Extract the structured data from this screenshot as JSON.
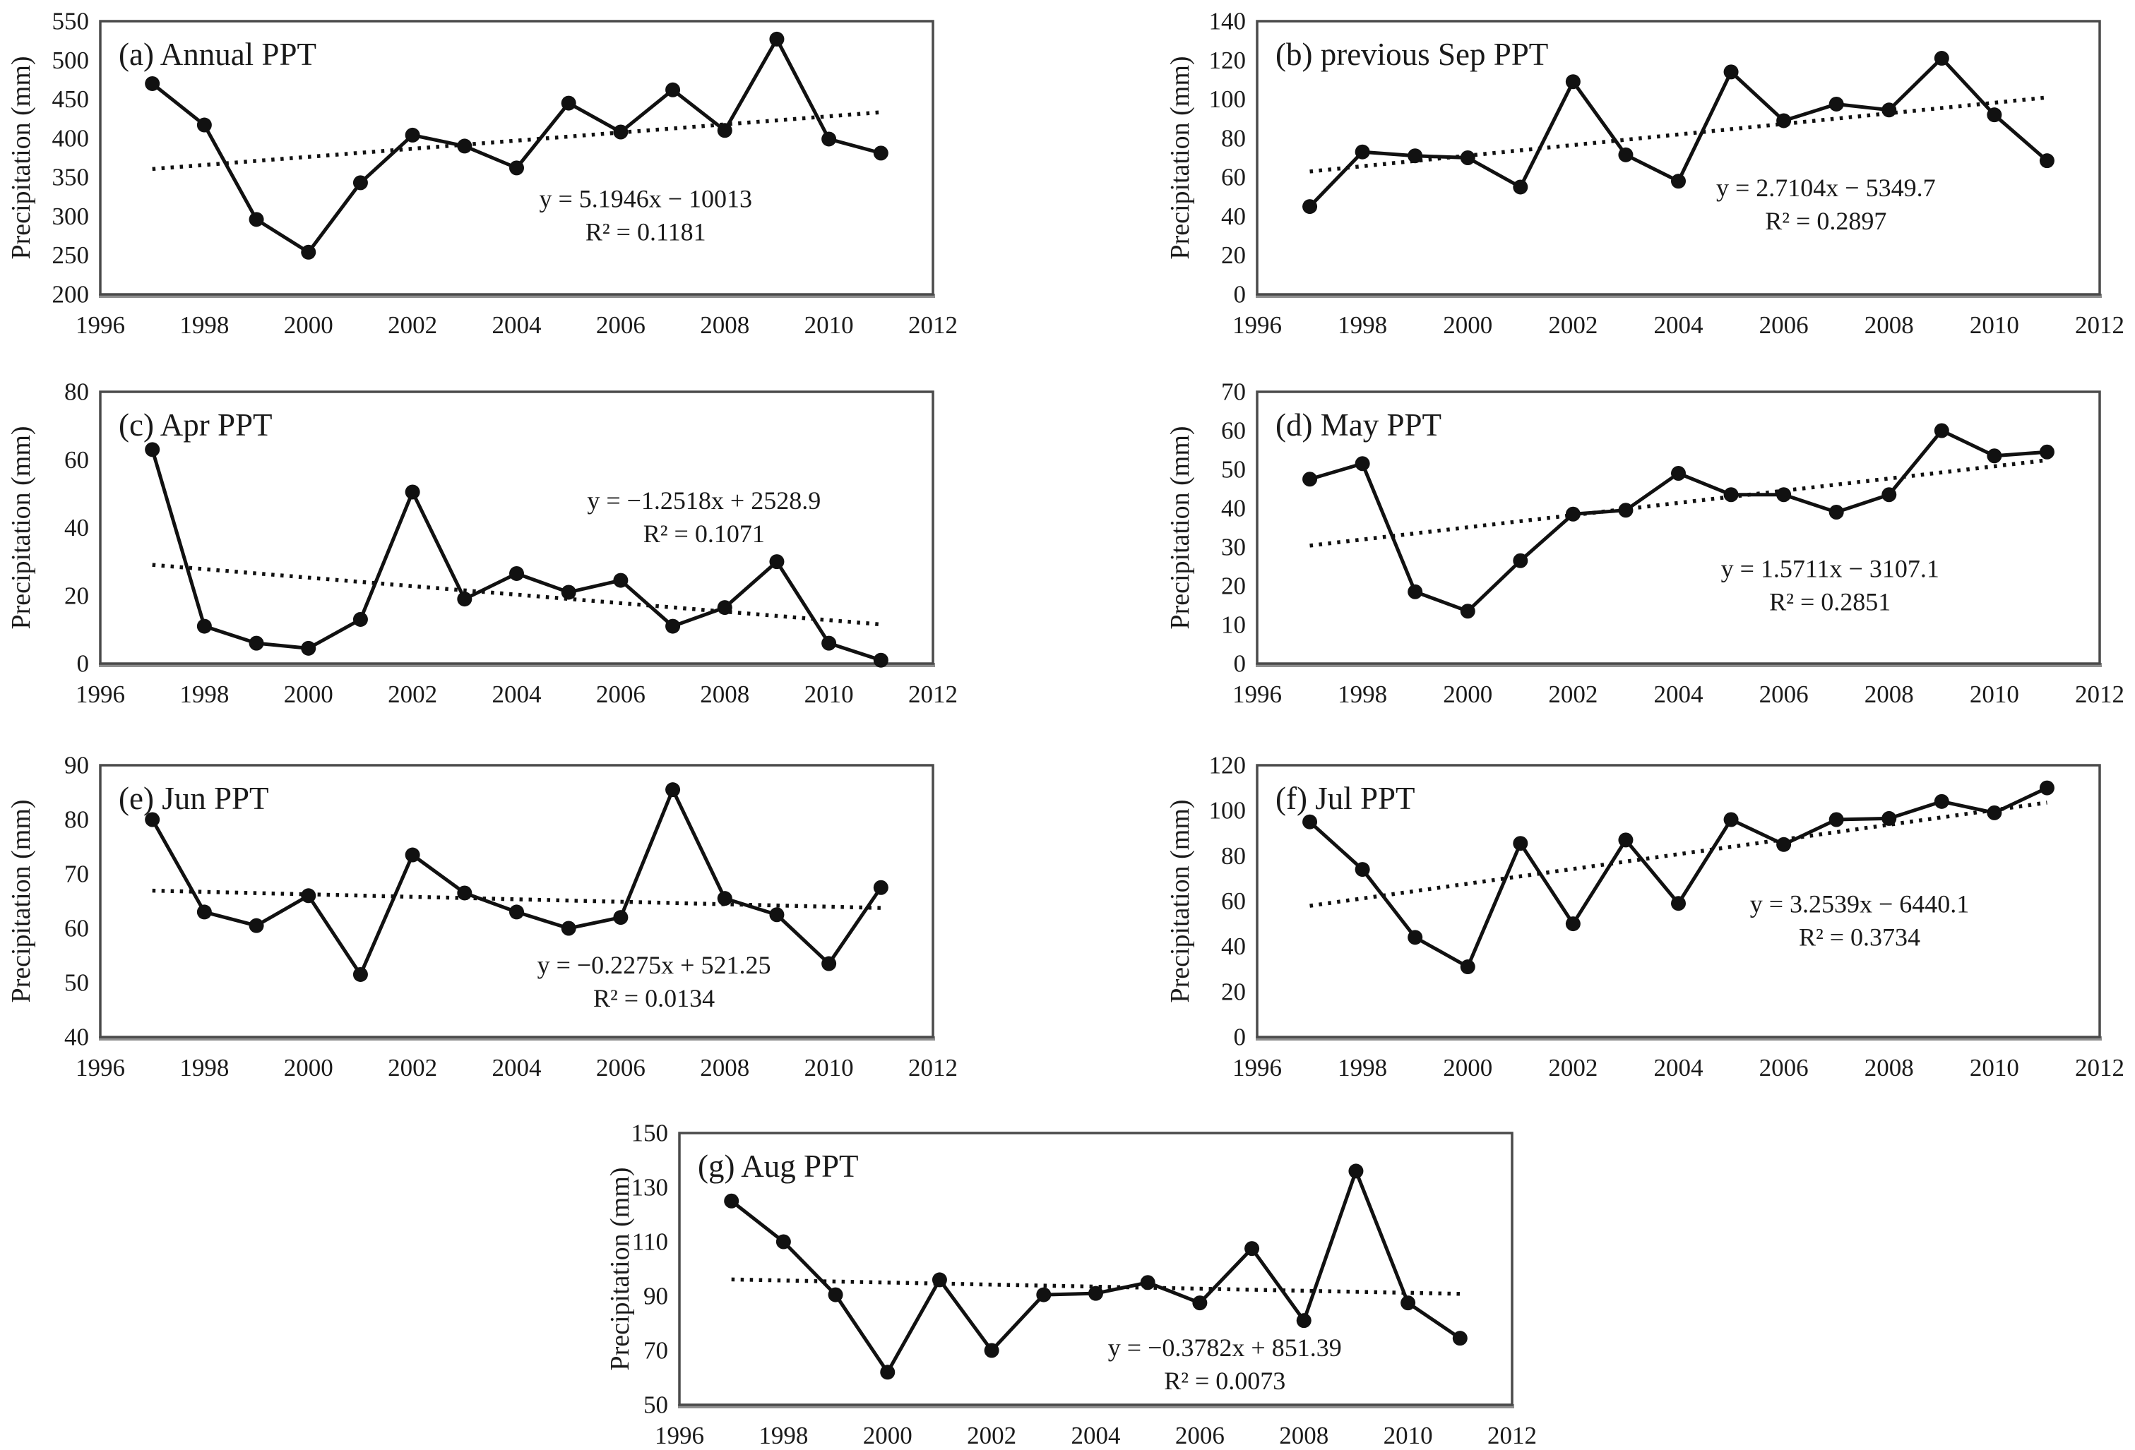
{
  "figure": {
    "ylabel": "Precipitation (mm)",
    "x_tick_labels": [
      "1996",
      "1998",
      "2000",
      "2002",
      "2004",
      "2006",
      "2008",
      "2010",
      "2012"
    ],
    "years": [
      1997,
      1998,
      1999,
      2000,
      2001,
      2002,
      2003,
      2004,
      2005,
      2006,
      2007,
      2008,
      2009,
      2010,
      2011
    ],
    "colors": {
      "background": "#ffffff",
      "series": "#111111",
      "marker": "#111111",
      "trend": "#111111",
      "axis_border": "#4a4a4a",
      "axis_baseline": "#8f8f8f",
      "text": "#1a1a1a"
    }
  },
  "chart_data": [
    {
      "id": "a",
      "type": "line",
      "title": "(a) Annual PPT",
      "ylabel": "Precipitation (mm)",
      "xlabel": "",
      "xlim": [
        1996,
        2012
      ],
      "xtick_step": 2,
      "ylim": [
        200,
        550
      ],
      "ytick_step": 50,
      "grid": false,
      "x": [
        1997,
        1998,
        1999,
        2000,
        2001,
        2002,
        2003,
        2004,
        2005,
        2006,
        2007,
        2008,
        2009,
        2010,
        2011
      ],
      "values": [
        470,
        417,
        296,
        254,
        343,
        404,
        390,
        362,
        445,
        408,
        462,
        410,
        527,
        399,
        381
      ],
      "trend": {
        "slope": 5.1946,
        "intercept": -10013,
        "equation": "y = 5.1946x − 10013",
        "r2": "R² = 0.1181"
      },
      "equation_pos": {
        "fx": 0.655,
        "fy": 0.65
      }
    },
    {
      "id": "b",
      "type": "line",
      "title": "(b) previous Sep PPT",
      "ylabel": "Precipitation (mm)",
      "xlabel": "",
      "xlim": [
        1996,
        2012
      ],
      "xtick_step": 2,
      "ylim": [
        0,
        140
      ],
      "ytick_step": 20,
      "grid": false,
      "x": [
        1997,
        1998,
        1999,
        2000,
        2001,
        2002,
        2003,
        2004,
        2005,
        2006,
        2007,
        2008,
        2009,
        2010,
        2011
      ],
      "values": [
        45,
        73,
        71,
        70,
        55,
        109,
        71.5,
        58,
        114,
        89,
        97.5,
        94.5,
        121,
        92,
        68.5
      ],
      "trend": {
        "slope": 2.7104,
        "intercept": -5349.7,
        "equation": "y = 2.7104x − 5349.7",
        "r2": "R² = 0.2897"
      },
      "equation_pos": {
        "fx": 0.675,
        "fy": 0.61
      }
    },
    {
      "id": "c",
      "type": "line",
      "title": "(c) Apr PPT",
      "ylabel": "Precipitation (mm)",
      "xlabel": "",
      "xlim": [
        1996,
        2012
      ],
      "xtick_step": 2,
      "ylim": [
        0,
        80
      ],
      "ytick_step": 20,
      "grid": false,
      "x": [
        1997,
        1998,
        1999,
        2000,
        2001,
        2002,
        2003,
        2004,
        2005,
        2006,
        2007,
        2008,
        2009,
        2010,
        2011
      ],
      "values": [
        63,
        11,
        6,
        4.5,
        13,
        50.5,
        19,
        26.5,
        21,
        24.5,
        11,
        16.5,
        30,
        6,
        1
      ],
      "trend": {
        "slope": -1.2518,
        "intercept": 2528.9,
        "equation": "y = −1.2518x + 2528.9",
        "r2": "R² = 0.1071"
      },
      "equation_pos": {
        "fx": 0.725,
        "fy": 0.4
      }
    },
    {
      "id": "d",
      "type": "line",
      "title": "(d) May PPT",
      "ylabel": "Precipitation (mm)",
      "xlabel": "",
      "xlim": [
        1996,
        2012
      ],
      "xtick_step": 2,
      "ylim": [
        0,
        70
      ],
      "ytick_step": 10,
      "grid": false,
      "x": [
        1997,
        1998,
        1999,
        2000,
        2001,
        2002,
        2003,
        2004,
        2005,
        2006,
        2007,
        2008,
        2009,
        2010,
        2011
      ],
      "values": [
        47.5,
        51.5,
        18.5,
        13.5,
        26.5,
        38.5,
        39.5,
        49,
        43.5,
        43.5,
        39,
        43.5,
        60,
        53.5,
        54.5
      ],
      "trend": {
        "slope": 1.5711,
        "intercept": -3107.1,
        "equation": "y = 1.5711x − 3107.1",
        "r2": "R² = 0.2851"
      },
      "equation_pos": {
        "fx": 0.68,
        "fy": 0.65
      }
    },
    {
      "id": "e",
      "type": "line",
      "title": "(e) Jun PPT",
      "ylabel": "Precipitation (mm)",
      "xlabel": "",
      "xlim": [
        1996,
        2012
      ],
      "xtick_step": 2,
      "ylim": [
        40,
        90
      ],
      "ytick_step": 10,
      "grid": false,
      "x": [
        1997,
        1998,
        1999,
        2000,
        2001,
        2002,
        2003,
        2004,
        2005,
        2006,
        2007,
        2008,
        2009,
        2010,
        2011
      ],
      "values": [
        80,
        63,
        60.5,
        66,
        51.5,
        73.5,
        66.5,
        63,
        60,
        62,
        85.5,
        65.5,
        62.5,
        53.5,
        67.5
      ],
      "trend": {
        "slope": -0.2275,
        "intercept": 521.25,
        "equation": "y = −0.2275x + 521.25",
        "r2": "R² = 0.0134"
      },
      "equation_pos": {
        "fx": 0.665,
        "fy": 0.735
      }
    },
    {
      "id": "f",
      "type": "line",
      "title": "(f) Jul PPT",
      "ylabel": "Precipitation (mm)",
      "xlabel": "",
      "xlim": [
        1996,
        2012
      ],
      "xtick_step": 2,
      "ylim": [
        0,
        120
      ],
      "ytick_step": 20,
      "grid": false,
      "x": [
        1997,
        1998,
        1999,
        2000,
        2001,
        2002,
        2003,
        2004,
        2005,
        2006,
        2007,
        2008,
        2009,
        2010,
        2011
      ],
      "values": [
        95,
        74,
        44,
        31,
        85.5,
        50,
        87,
        59,
        96,
        85,
        96,
        96.5,
        104,
        99,
        110
      ],
      "trend": {
        "slope": 3.2539,
        "intercept": -6440.1,
        "equation": "y = 3.2539x − 6440.1",
        "r2": "R² = 0.3734"
      },
      "equation_pos": {
        "fx": 0.715,
        "fy": 0.51
      }
    },
    {
      "id": "g",
      "type": "line",
      "title": "(g) Aug PPT",
      "ylabel": "Precipitation (mm)",
      "xlabel": "",
      "xlim": [
        1996,
        2012
      ],
      "xtick_step": 2,
      "ylim": [
        50,
        150
      ],
      "ytick_step": 20,
      "grid": false,
      "x": [
        1997,
        1998,
        1999,
        2000,
        2001,
        2002,
        2003,
        2004,
        2005,
        2006,
        2007,
        2008,
        2009,
        2010,
        2011
      ],
      "values": [
        125,
        110,
        90.5,
        62,
        96,
        70,
        90.5,
        91,
        95,
        87.5,
        107.5,
        81,
        136,
        87.5,
        74.5
      ],
      "trend": {
        "slope": -0.3782,
        "intercept": 851.39,
        "equation": "y = −0.3782x + 851.39",
        "r2": "R² = 0.0073"
      },
      "equation_pos": {
        "fx": 0.655,
        "fy": 0.79
      }
    }
  ]
}
